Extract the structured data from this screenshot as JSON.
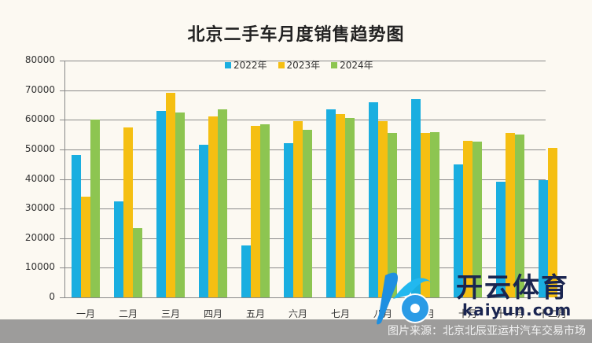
{
  "chart_data": {
    "type": "bar",
    "title": "北京二手车月度销售趋势图",
    "xlabel": "",
    "ylabel": "",
    "ylim": [
      0,
      80000
    ],
    "yticks": [
      0,
      10000,
      20000,
      30000,
      40000,
      50000,
      60000,
      70000,
      80000
    ],
    "grid": true,
    "legend_position": "top",
    "categories": [
      "一月",
      "二月",
      "三月",
      "四月",
      "五月",
      "六月",
      "七月",
      "八月",
      "九月",
      "十月",
      "十一月",
      "十二月"
    ],
    "series": [
      {
        "name": "2022年",
        "color": "#1aaee0",
        "values": [
          48000,
          32500,
          63000,
          51500,
          17500,
          52000,
          63500,
          66000,
          67000,
          45000,
          39000,
          39500
        ]
      },
      {
        "name": "2023年",
        "color": "#f5bf12",
        "values": [
          34000,
          57500,
          69000,
          61000,
          58000,
          59500,
          62000,
          59500,
          55500,
          53000,
          55500,
          50500
        ]
      },
      {
        "name": "2024年",
        "color": "#8dc551",
        "values": [
          60000,
          23500,
          62500,
          63500,
          58500,
          56500,
          60500,
          55500,
          55800,
          52500,
          55000,
          null
        ]
      }
    ]
  },
  "footer": {
    "source": "图片来源：北京北辰亚运村汽车交易市场"
  },
  "watermark": {
    "name": "开云体育",
    "url": "kaiyun.com"
  }
}
